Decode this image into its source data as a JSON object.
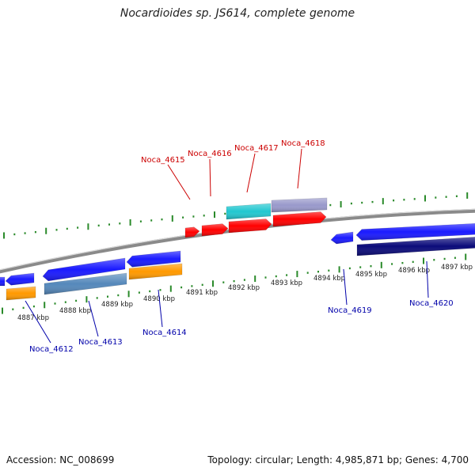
{
  "title": "Nocardioides sp. JS614, complete genome",
  "footer": {
    "accession": "Accession: NC_008699",
    "stats": "Topology: circular; Length: 4,985,871 bp; Genes: 4,700"
  },
  "colors": {
    "backbone": "#8a8a8a",
    "tick": "#2a8a2a",
    "forward_label": "#cc0000",
    "reverse_label": "#0000aa",
    "red": "#ff0000",
    "cyan": "#22c8d0",
    "lavender": "#9999cc",
    "blue": "#1a1aff",
    "navy": "#0b0b7a",
    "orange": "#ff9900",
    "steel": "#5588bb"
  },
  "kbp_labels": [
    "4887 kbp",
    "4888 kbp",
    "4889 kbp",
    "4890 kbp",
    "4891 kbp",
    "4892 kbp",
    "4893 kbp",
    "4894 kbp",
    "4895 kbp",
    "4896 kbp",
    "4897 kbp"
  ],
  "gene_labels_forward": [
    "Noca_4615",
    "Noca_4616",
    "Noca_4617",
    "Noca_4618"
  ],
  "gene_labels_reverse": [
    "Noca_4612",
    "Noca_4613",
    "Noca_4614",
    "Noca_4619",
    "Noca_4620"
  ]
}
